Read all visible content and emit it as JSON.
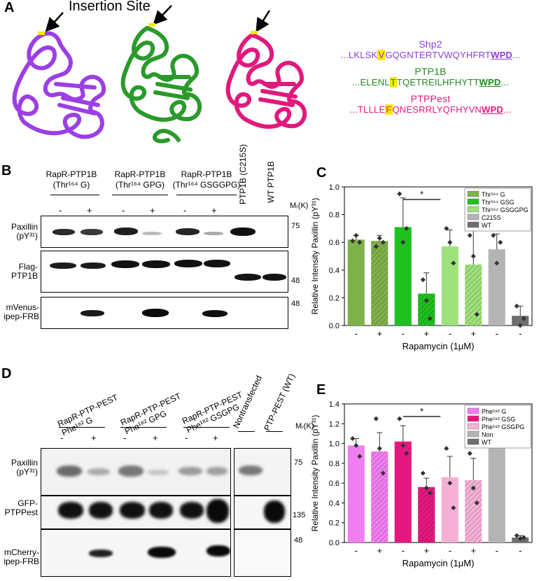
{
  "panelA": {
    "letter": "A",
    "insertion_label": "Insertion Site",
    "sequences": [
      {
        "name": "Shp2",
        "color": "#8a3fd6",
        "pre": "...LKLSK",
        "hl": "V",
        "mid": "GQGNTERTVWQYHFRT",
        "motif": "WPD",
        "post": "..."
      },
      {
        "name": "PTP1B",
        "color": "#1e8c1e",
        "pre": "...ELENL",
        "hl": "T",
        "mid": "TQETREILHFHYTT",
        "motif": "WPD",
        "post": "..."
      },
      {
        "name": "PTPPest",
        "color": "#e0197d",
        "pre": "...TLLLE",
        "hl": "F",
        "mid": "QNESRRLYQFHYVN",
        "motif": "WPD",
        "post": "..."
      }
    ]
  },
  "panelB": {
    "letter": "B",
    "groups": [
      {
        "line1": "RapR-PTP1B",
        "line2": "(Thr¹⁶⁴ G)"
      },
      {
        "line1": "RapR-PTP1B",
        "line2": "(Thr¹⁶⁴ GPG)"
      },
      {
        "line1": "RapR-PTP1B",
        "line2": "(Thr¹⁶⁴ GSGGPG)"
      }
    ],
    "rot_labels": [
      "PTP1B (C215S)",
      "WT PTP1B"
    ],
    "mr_label": "Mᵣ(K)",
    "signs": [
      "-",
      "+",
      "-",
      "+",
      "-",
      "+"
    ],
    "rows": [
      {
        "label1": "Paxillin",
        "label2": "(pY³¹)",
        "marker": "75"
      },
      {
        "label1": "Flag-",
        "label2": "PTP1B",
        "marker": "48"
      },
      {
        "label1": "mVenus-",
        "label2": "ipep-FRB",
        "marker": "48"
      }
    ]
  },
  "panelD": {
    "letter": "D",
    "groups": [
      {
        "line1": "RapR-PTP-PEST",
        "line2": "Phe¹⁸² G"
      },
      {
        "line1": "RapR-PTP-PEST",
        "line2": "Phe¹⁸²  GPG"
      },
      {
        "line1": "RapR-PTP-PEST",
        "line2": "Phe¹⁸²  GSGPG"
      }
    ],
    "rot_labels": [
      "Nontransfected",
      "PTP-PEST (WT)"
    ],
    "mr_label": "Mᵣ(K)",
    "signs": [
      "-",
      "+",
      "-",
      "+",
      "-",
      "+"
    ],
    "rows": [
      {
        "label1": "Paxillin",
        "label2": "(pY³¹)",
        "marker": "75"
      },
      {
        "label1": "GFP-",
        "label2": "PTPPest",
        "marker": "135"
      },
      {
        "label1": "mCherry-",
        "label2": "ipep-FRB",
        "marker": "48"
      }
    ]
  },
  "chart_data": [
    {
      "panel": "C",
      "type": "bar",
      "ylabel": "Relative Intensity Paxillin (pY³¹)",
      "xlabel": "Rapamycin (1μM)",
      "ylim": [
        0,
        1.0
      ],
      "yticks": [
        "0.0",
        "0.2",
        "0.4",
        "0.6",
        "0.8",
        "1.0"
      ],
      "categories": [
        "-",
        "+",
        "-",
        "+",
        "-",
        "+",
        "-",
        "-"
      ],
      "values": [
        0.62,
        0.61,
        0.71,
        0.23,
        0.57,
        0.44,
        0.55,
        0.07
      ],
      "errors": [
        0.03,
        0.04,
        0.21,
        0.15,
        0.12,
        0.27,
        0.11,
        0.07
      ],
      "points": [
        [
          0.61,
          0.65,
          0.6
        ],
        [
          0.57,
          0.63,
          0.6
        ],
        [
          0.95,
          0.6,
          0.7
        ],
        [
          0.33,
          0.18,
          0.05
        ],
        [
          0.7,
          0.6,
          0.45
        ],
        [
          0.65,
          0.5,
          0.08
        ],
        [
          0.65,
          0.45,
          0.6
        ],
        [
          0.14,
          0.0,
          0.05
        ]
      ],
      "colors": [
        "#7fb14a",
        "#7fb14a",
        "#1fc01f",
        "#1fc01f",
        "#9ee07a",
        "#9ee07a",
        "#b4b4b4",
        "#6e6e6e"
      ],
      "hatched": [
        false,
        true,
        false,
        true,
        false,
        true,
        false,
        false
      ],
      "legend": [
        "Thr¹⁶⁴ G",
        "Thr¹⁶⁴ GSG",
        "Thr¹⁶⁴ GSGGPG",
        "C215S",
        "WT"
      ],
      "legend_colors": [
        "#7fb14a",
        "#1fc01f",
        "#9ee07a",
        "#b4b4b4",
        "#6e6e6e"
      ],
      "legend_position": "top-right",
      "significance": {
        "from": 2,
        "to": 3,
        "label": "*"
      }
    },
    {
      "panel": "E",
      "type": "bar",
      "ylabel": "Relative Intensity Paxillin (pY³¹)",
      "xlabel": "Rapamycin (1μM)",
      "ylim": [
        0,
        1.4
      ],
      "yticks": [
        "0.0",
        "0.2",
        "0.4",
        "0.6",
        "0.8",
        "1.0",
        "1.2",
        "1.4"
      ],
      "categories": [
        "-",
        "+",
        "-",
        "+",
        "-",
        "+",
        "-",
        "-"
      ],
      "values": [
        0.98,
        0.92,
        1.02,
        0.56,
        0.66,
        0.63,
        1.0,
        0.05
      ],
      "errors": [
        0.07,
        0.19,
        0.16,
        0.09,
        0.21,
        0.22,
        0.0,
        0.02
      ],
      "points": [
        [
          1.05,
          0.98,
          0.87
        ],
        [
          1.25,
          0.95,
          0.7
        ],
        [
          1.25,
          0.98,
          0.9
        ],
        [
          0.7,
          0.55,
          0.5
        ],
        [
          0.95,
          0.6,
          0.35
        ],
        [
          0.9,
          0.55,
          0.4
        ],
        [
          1.0,
          1.0,
          1.0
        ],
        [
          0.07,
          0.04,
          0.05
        ]
      ],
      "colors": [
        "#f07ef0",
        "#f07ef0",
        "#e6187f",
        "#e6187f",
        "#f5b0d6",
        "#f5b0d6",
        "#b4b4b4",
        "#6e6e6e"
      ],
      "hatched": [
        false,
        true,
        false,
        true,
        false,
        true,
        false,
        false
      ],
      "legend": [
        "Phe¹⁸² G",
        "Phe¹⁸² GSG",
        "Phe¹⁸² GSGPG",
        "Non",
        "WT"
      ],
      "legend_colors": [
        "#f07ef0",
        "#e6187f",
        "#f5b0d6",
        "#b4b4b4",
        "#6e6e6e"
      ],
      "legend_position": "top-right",
      "significance": {
        "from": 2,
        "to": 3,
        "label": "*"
      }
    }
  ]
}
